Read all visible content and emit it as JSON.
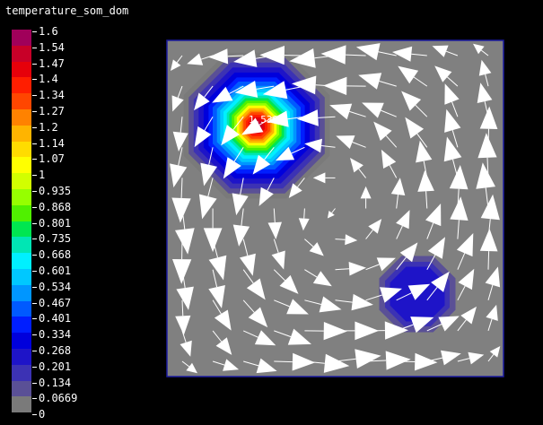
{
  "title": "temperature_som_dom",
  "legend": {
    "ticks": [
      "1.6",
      "1.54",
      "1.47",
      "1.4",
      "1.34",
      "1.27",
      "1.2",
      "1.14",
      "1.07",
      "1",
      "0.935",
      "0.868",
      "0.801",
      "0.735",
      "0.668",
      "0.601",
      "0.534",
      "0.467",
      "0.401",
      "0.334",
      "0.268",
      "0.201",
      "0.134",
      "0.0669",
      "0"
    ],
    "colors": [
      "#a0005a",
      "#c80028",
      "#e6000a",
      "#ff1e00",
      "#ff4600",
      "#ff8200",
      "#ffb400",
      "#ffdc00",
      "#ffff00",
      "#d2ff00",
      "#96ff00",
      "#50f000",
      "#00e650",
      "#00e6b4",
      "#00f0ff",
      "#00c8ff",
      "#0096ff",
      "#005aff",
      "#001eff",
      "#0000dc",
      "#1e14c8",
      "#3c32b4",
      "#5a5096",
      "#7a7a7a"
    ]
  },
  "plot": {
    "background": "#808080",
    "border": "#1a1aa0",
    "peak_label": "1.5301"
  }
}
